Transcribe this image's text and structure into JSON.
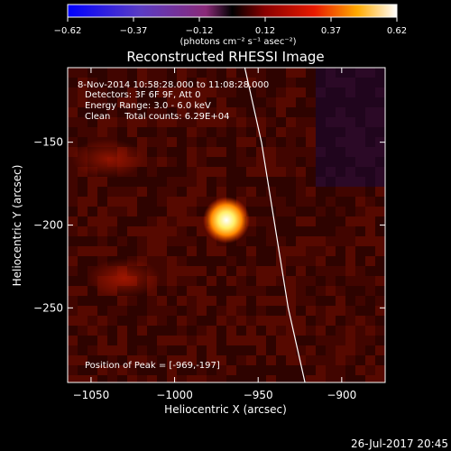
{
  "colorbar": {
    "ticks": [
      "-0.62",
      "-0.37",
      "-0.12",
      "0.12",
      "0.37",
      "0.62"
    ],
    "units": "(photons cm⁻² s⁻¹ asec⁻²)"
  },
  "chart_data": {
    "type": "heatmap",
    "title": "Reconstructed RHESSI Image",
    "xlabel": "Heliocentric X (arcsec)",
    "ylabel": "Heliocentric Y (arcsec)",
    "xlim": [
      -1064,
      -874
    ],
    "ylim": [
      -295,
      -105
    ],
    "x_ticks": [
      -1050,
      -1000,
      -950,
      -900
    ],
    "x_tick_labels": [
      "−1050",
      "−1000",
      "−950",
      "−900"
    ],
    "y_ticks": [
      -150,
      -200,
      -250
    ],
    "y_tick_labels": [
      "−150",
      "−200",
      "−250"
    ],
    "value_range": [
      -0.62,
      0.62
    ],
    "colormap": "rhessi-hot",
    "sources": [
      {
        "x": -969,
        "y": -197,
        "peak": 0.62,
        "label": "peak"
      },
      {
        "x": -1030,
        "y": -232,
        "peak": 0.25
      },
      {
        "x": -1040,
        "y": -160,
        "peak": 0.18
      }
    ],
    "limb_line": [
      {
        "x": -958,
        "y": -105
      },
      {
        "x": -948,
        "y": -150
      },
      {
        "x": -940,
        "y": -200
      },
      {
        "x": -932,
        "y": -250
      },
      {
        "x": -922,
        "y": -295
      }
    ],
    "annotations": [
      "8-Nov-2014 10:58:28.000 to 11:08:28.000",
      "Detectors: 3F 6F 9F, Att 0",
      "Energy Range: 3.0 - 6.0 keV",
      "Clean     Total counts: 6.29E+04"
    ],
    "peak_text": "Position of Peak = [-969,-197]"
  },
  "footer": {
    "timestamp": "26-Jul-2017 20:45"
  }
}
